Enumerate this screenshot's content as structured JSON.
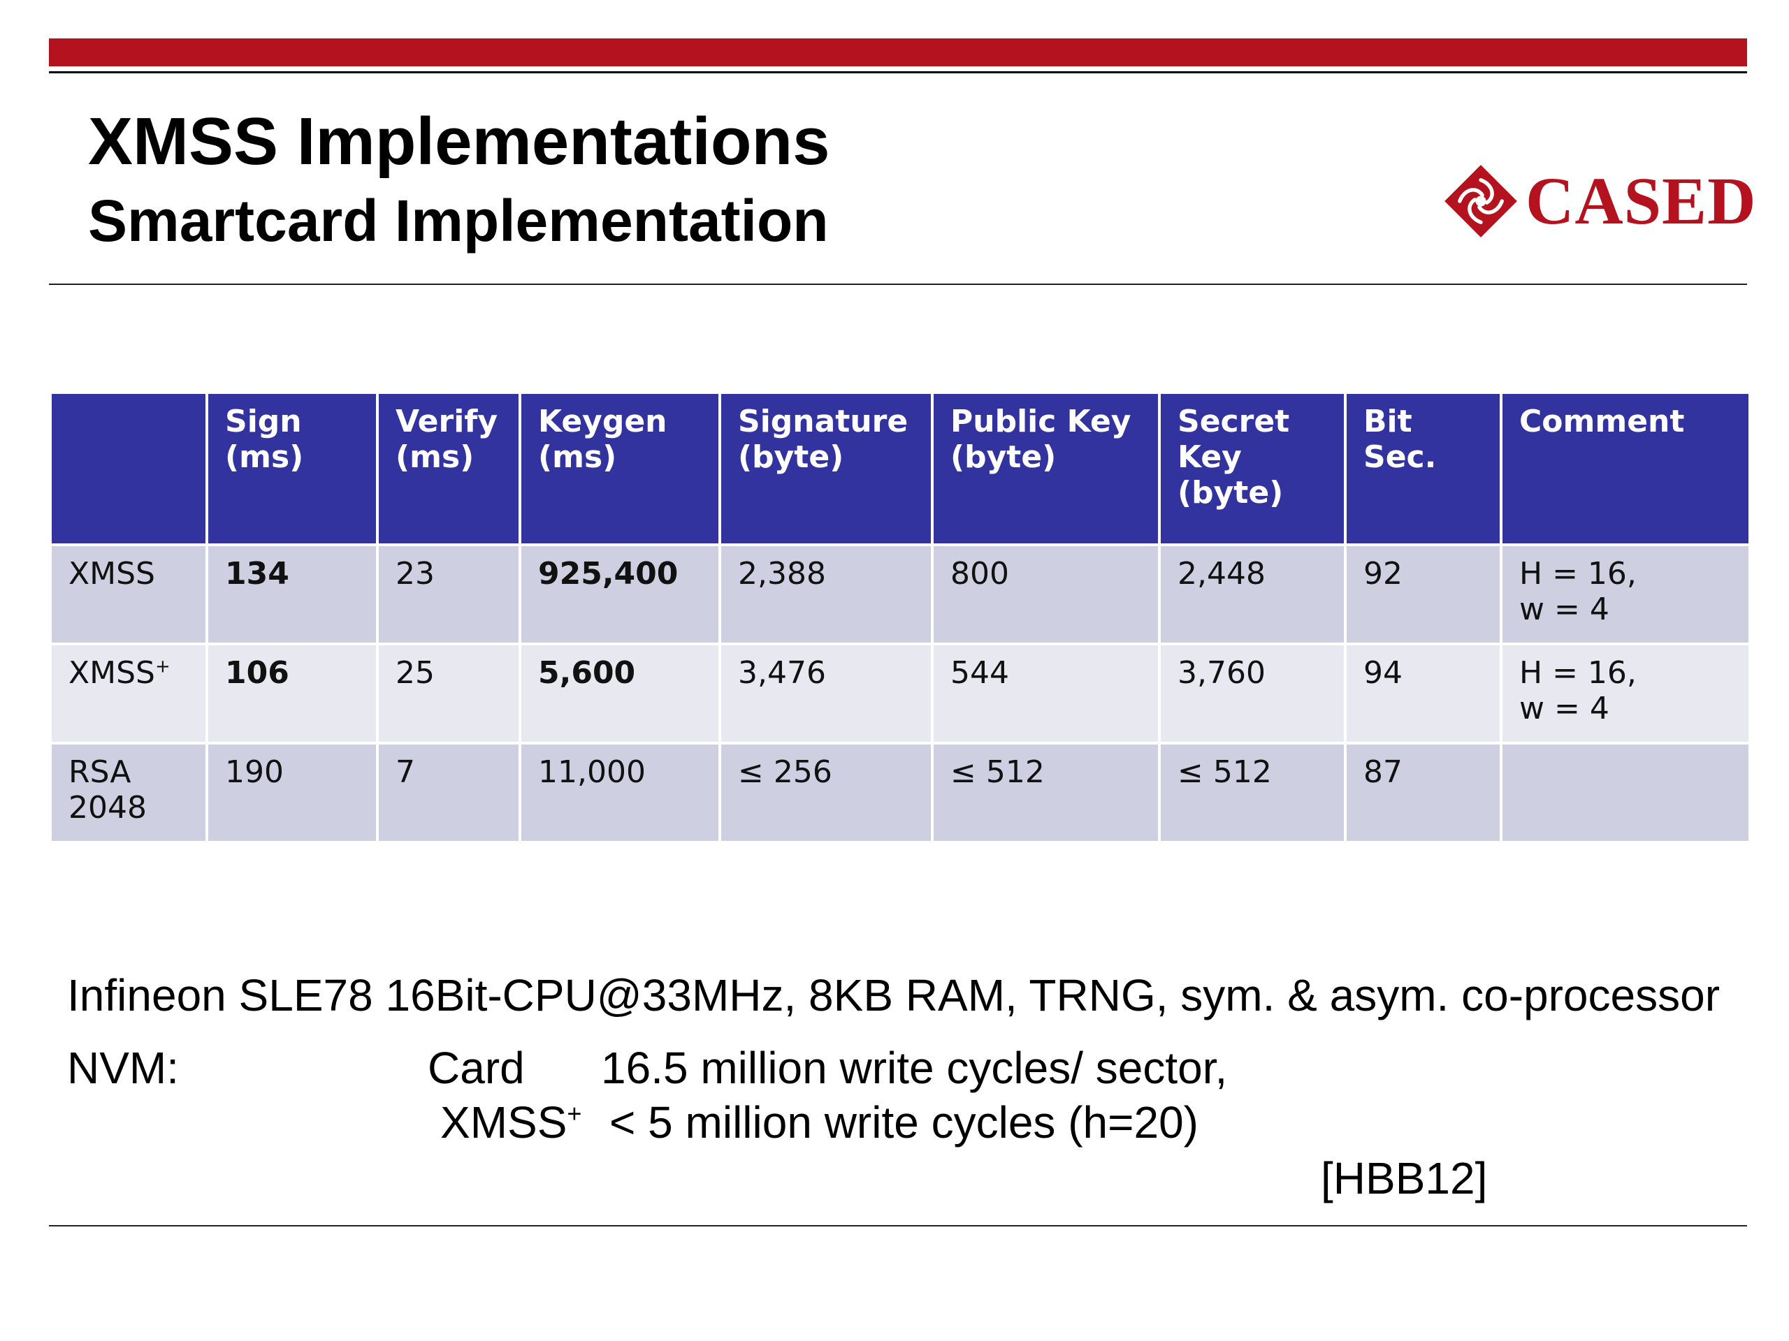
{
  "slide": {
    "title": "XMSS Implementations",
    "subtitle": "Smartcard Implementation",
    "logo_text": "CASED",
    "accent_color": "#b5121f"
  },
  "table": {
    "header_color": "#3333a0",
    "headers": [
      "",
      "Sign (ms)",
      "Verify (ms)",
      "Keygen (ms)",
      "Signature (byte)",
      "Public Key (byte)",
      "Secret Key (byte)",
      "Bit Sec.",
      "Comment"
    ],
    "rows": [
      {
        "name": "XMSS",
        "sup": "",
        "sign": "134",
        "verify": "23",
        "keygen": "925,400",
        "signature": "2,388",
        "public_key": "800",
        "secret_key": "2,448",
        "bit_sec": "92",
        "comment_line1": "H = 16,",
        "comment_line2": "w = 4"
      },
      {
        "name": "XMSS",
        "sup": "+",
        "sign": "106",
        "verify": "25",
        "keygen": "5,600",
        "signature": "3,476",
        "public_key": "544",
        "secret_key": "3,760",
        "bit_sec": "94",
        "comment_line1": "H = 16,",
        "comment_line2": "w = 4"
      },
      {
        "name": "RSA 2048",
        "sup": "",
        "sign": "190",
        "verify": "7",
        "keygen": "11,000",
        "signature": "≤ 256",
        "public_key": "≤ 512",
        "secret_key": "≤ 512",
        "bit_sec": "87",
        "comment_line1": "",
        "comment_line2": ""
      }
    ]
  },
  "notes": {
    "hardware": "Infineon SLE78 16Bit-CPU@33MHz, 8KB RAM, TRNG, sym. & asym. co-processor",
    "nvm_label": "NVM:",
    "card_label": "Card",
    "card_value": "16.5 million write cycles/ sector,",
    "xmss_label": "XMSS",
    "xmss_sup": "+",
    "xmss_value": "< 5 million write cycles (h=20)",
    "reference": "[HBB12]"
  }
}
